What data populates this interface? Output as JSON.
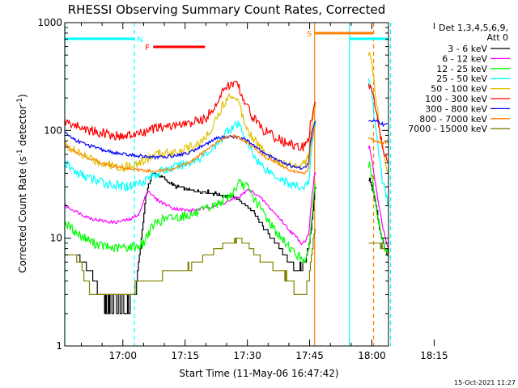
{
  "chart_data": {
    "type": "line",
    "title": "RHESSI Observing Summary Count Rates, Corrected",
    "xlabel": "Start Time (11-May-06 16:47:42)",
    "ylabel": "Corrected Count Rate (s⁻¹ detector⁻¹)",
    "ylabel_parts": [
      "Corrected Count Rate (s",
      "-1",
      " detector",
      "-1",
      ")"
    ],
    "yscale": "log",
    "ylim": [
      1,
      1000
    ],
    "xlim_minutes": [
      -14,
      64
    ],
    "x_tick_labels": [
      "17:00",
      "17:15",
      "17:30",
      "17:45",
      "18:00",
      "18:15"
    ],
    "x_tick_minutes": [
      0,
      15,
      30,
      45,
      60,
      75
    ],
    "y_tick_labels": [
      "1",
      "10",
      "100",
      "1000"
    ],
    "y_tick_values": [
      1,
      10,
      100,
      1000
    ],
    "legend_header": [
      "Det 1,3,4,5,6,9,",
      "Att 0"
    ],
    "legend_position": "right",
    "timestamp": "15-Oct-2021 11:27",
    "x_unit": "minutes after 17:00",
    "series": [
      {
        "name": "3 - 6 keV",
        "color": "#000000",
        "x": [
          -11,
          -8,
          -6,
          -4.5,
          -3,
          -1,
          0.5,
          2,
          3,
          4,
          5.5,
          7,
          9,
          11,
          13,
          16,
          20,
          24,
          27,
          29,
          31,
          33,
          35,
          37,
          39,
          40,
          41,
          42,
          43,
          44,
          45,
          45.8,
          46.2,
          59.5,
          61,
          62,
          64
        ],
        "values": [
          7,
          5,
          3.5,
          2.5,
          2.5,
          2.5,
          2.5,
          2.5,
          3,
          7,
          25,
          40,
          38,
          33,
          30,
          28,
          27,
          25,
          24,
          21,
          18,
          14,
          11,
          9,
          7,
          6,
          5.5,
          5,
          5.5,
          6,
          10,
          18,
          30,
          35,
          20,
          11,
          6.5
        ]
      },
      {
        "name": "6 - 12 keV",
        "color": "#ff00ff",
        "x": [
          -14,
          -11,
          -9,
          -7,
          -5,
          -2,
          0,
          2,
          4,
          6,
          8,
          12,
          16,
          20,
          24,
          28,
          30,
          32,
          34,
          36,
          38,
          40,
          41,
          42,
          43,
          44,
          44.8,
          45.2,
          46.2,
          59.5,
          61,
          62,
          63,
          64
        ],
        "values": [
          20,
          17.5,
          16,
          15,
          14.5,
          14,
          14.5,
          15,
          17,
          28,
          23,
          19,
          18,
          19,
          21,
          24,
          28,
          26,
          22,
          18,
          15,
          12,
          11,
          10,
          9,
          9.5,
          11,
          18,
          40,
          70,
          30,
          17,
          11,
          8
        ]
      },
      {
        "name": "12 - 25 keV",
        "color": "#00ff00",
        "x": [
          -14,
          -11,
          -9,
          -7,
          -5,
          -2,
          0,
          2,
          4,
          5,
          6,
          8,
          10,
          14,
          18,
          22,
          26,
          28,
          30,
          32,
          34,
          36,
          38,
          40,
          41,
          42,
          43,
          44,
          44.8,
          45.2,
          46.2,
          59.5,
          61,
          62,
          63,
          64
        ],
        "values": [
          14,
          11,
          10,
          9,
          8.5,
          8,
          8.2,
          8.3,
          8.5,
          9,
          11,
          14,
          15,
          16,
          17,
          20,
          25,
          32,
          30,
          22,
          17,
          13,
          10,
          8.5,
          7.5,
          7,
          6.5,
          6.5,
          7,
          12,
          30,
          50,
          20,
          12,
          8.5,
          7
        ]
      },
      {
        "name": "25 - 50 keV",
        "color": "#00ffff",
        "x": [
          -14,
          -11,
          -8,
          -5,
          -2,
          0,
          2,
          5,
          8,
          12,
          16,
          20,
          23,
          25,
          27,
          28,
          29,
          30,
          32,
          34,
          36,
          38,
          40,
          42,
          44,
          44.8,
          45.2,
          46.2,
          59.5,
          60.5,
          61.5,
          62.5,
          64
        ],
        "values": [
          50,
          40,
          36,
          33,
          31,
          30,
          31,
          34,
          40,
          45,
          50,
          60,
          75,
          100,
          110,
          112,
          95,
          75,
          55,
          45,
          40,
          36,
          32,
          30,
          30,
          32,
          50,
          120,
          300,
          140,
          70,
          35,
          20
        ]
      },
      {
        "name": "50 - 100 keV",
        "color": "#e0c000",
        "x": [
          -14,
          -11,
          -8,
          -5,
          -2,
          0,
          2,
          4,
          6,
          8,
          12,
          16,
          20,
          23,
          25,
          27,
          28,
          29,
          31,
          33,
          36,
          39,
          42,
          44,
          44.8,
          45.2,
          46.2,
          59.5,
          60,
          61,
          62,
          63,
          64
        ],
        "values": [
          75,
          62,
          55,
          50,
          47,
          46,
          47,
          50,
          55,
          60,
          63,
          68,
          85,
          140,
          200,
          215,
          180,
          130,
          90,
          70,
          55,
          48,
          48,
          50,
          60,
          90,
          160,
          500,
          450,
          200,
          90,
          55,
          40
        ]
      },
      {
        "name": "100 - 300 keV",
        "color": "#ff0000",
        "x": [
          -14,
          -11,
          -8,
          -5,
          -2,
          0,
          2,
          5,
          8,
          12,
          16,
          20,
          23,
          25,
          27,
          28,
          29,
          31,
          34,
          37,
          40,
          42,
          44,
          44.8,
          45.2,
          46.2,
          59.5,
          60.5,
          61.5,
          62.5,
          64
        ],
        "values": [
          120,
          110,
          100,
          95,
          90,
          88,
          90,
          95,
          105,
          110,
          115,
          130,
          190,
          260,
          270,
          250,
          200,
          140,
          100,
          85,
          75,
          70,
          70,
          80,
          120,
          180,
          260,
          200,
          120,
          70,
          50
        ]
      },
      {
        "name": "300 - 800 keV",
        "color": "#0000ff",
        "x": [
          -14,
          -11,
          -8,
          -5,
          -2,
          0,
          2,
          4,
          6,
          8,
          12,
          16,
          20,
          23,
          25,
          26,
          28,
          30,
          32,
          34,
          36,
          38,
          40,
          42,
          44,
          44.8,
          45.2,
          46.2,
          59.5,
          61,
          62,
          63,
          64
        ],
        "values": [
          95,
          80,
          72,
          66,
          62,
          60,
          59,
          58,
          57,
          56,
          58,
          62,
          75,
          85,
          88,
          88,
          86,
          80,
          70,
          62,
          56,
          52,
          48,
          45,
          45,
          50,
          80,
          120,
          120,
          125,
          118,
          112,
          115
        ]
      },
      {
        "name": "800 - 7000 keV",
        "color": "#ff8000",
        "x": [
          -14,
          -11,
          -8,
          -5,
          -2,
          0,
          2,
          4,
          6,
          8,
          12,
          16,
          20,
          23,
          25,
          27,
          29,
          31,
          33,
          35,
          37,
          39,
          41,
          43,
          44,
          44.8,
          45.2,
          46.2,
          59.5,
          61,
          62,
          63,
          64
        ],
        "values": [
          75,
          62,
          55,
          50,
          46,
          45,
          44,
          43,
          42,
          42,
          44,
          50,
          65,
          80,
          88,
          88,
          82,
          72,
          62,
          55,
          50,
          45,
          42,
          40,
          40,
          45,
          70,
          110,
          85,
          80,
          78,
          78,
          76
        ]
      },
      {
        "name": "7000 - 15000 keV",
        "color": "#808000",
        "x": [
          -14,
          -12,
          -10,
          -9,
          -7,
          -5,
          -3,
          -1,
          0,
          1,
          2,
          3,
          4,
          6,
          10,
          14,
          18,
          22,
          25,
          27,
          28,
          29,
          31,
          33,
          35,
          37,
          39,
          41,
          42,
          43,
          44,
          45,
          45.6,
          46.2,
          59.5,
          61,
          62,
          63,
          64
        ],
        "values": [
          7,
          7,
          5.5,
          4,
          3,
          3,
          3,
          3,
          3,
          3,
          3,
          3.5,
          4,
          4,
          4.5,
          5,
          6,
          7.5,
          9,
          9.5,
          10,
          9.5,
          8,
          6.5,
          6,
          5,
          4.5,
          3.5,
          3,
          3,
          3,
          5,
          8,
          12,
          9,
          9,
          8.5,
          8,
          7.5
        ]
      }
    ],
    "state_bars": [
      {
        "label": "N",
        "kind": "night",
        "color": "#00ffff",
        "start": -14,
        "end": 2.8
      },
      {
        "label": "N",
        "kind": "night",
        "color": "#00ffff",
        "start": 54.6,
        "end": 64
      },
      {
        "label": "F",
        "kind": "flare",
        "color": "#ff0000",
        "start": 7.3,
        "end": 19.8
      },
      {
        "label": "S",
        "kind": "saa",
        "color": "#ff8000",
        "start": 46.2,
        "end": 60.4
      }
    ],
    "vertical_markers": [
      {
        "minute": -14,
        "color": "#00ffff",
        "style": "solid"
      },
      {
        "minute": 2.8,
        "color": "#00ffff",
        "style": "dashed"
      },
      {
        "minute": 46.2,
        "color": "#ff8000",
        "style": "solid"
      },
      {
        "minute": 54.6,
        "color": "#00ffff",
        "style": "solid"
      },
      {
        "minute": 60.4,
        "color": "#ff8000",
        "style": "dashed"
      },
      {
        "minute": 64.5,
        "color": "#00ffff",
        "style": "dashed"
      }
    ],
    "data_gap_minutes": [
      46.6,
      59.2
    ]
  }
}
